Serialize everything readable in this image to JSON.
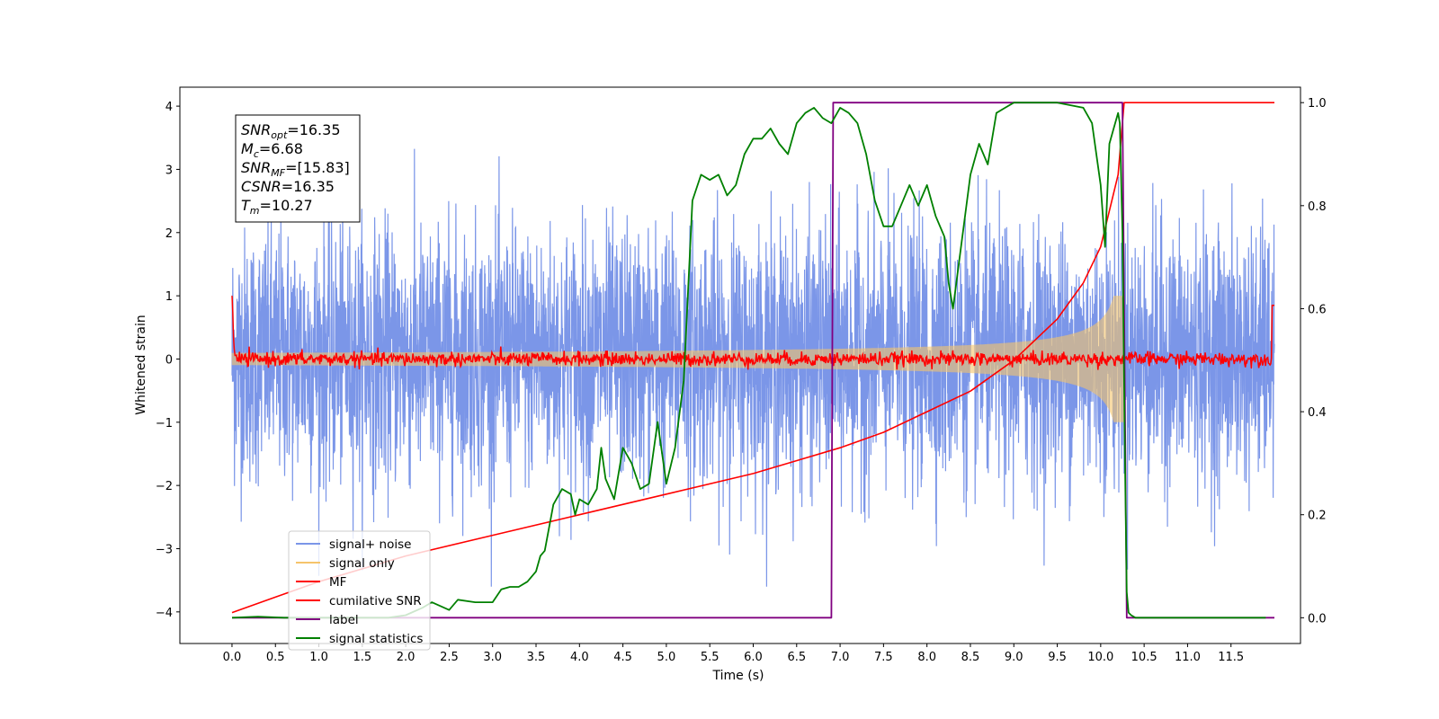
{
  "chart_data": {
    "type": "line",
    "xlabel": "Time (s)",
    "ylabel": "Whitened strain",
    "xlim": [
      -0.6,
      12.3
    ],
    "ylim_left": [
      -4.5,
      4.3
    ],
    "ylim_right": [
      -0.05,
      1.03
    ],
    "x_ticks": [
      "0.0",
      "0.5",
      "1.0",
      "1.5",
      "2.0",
      "2.5",
      "3.0",
      "3.5",
      "4.0",
      "4.5",
      "5.0",
      "5.5",
      "6.0",
      "6.5",
      "7.0",
      "7.5",
      "8.0",
      "8.5",
      "9.0",
      "9.5",
      "10.0",
      "10.5",
      "11.0",
      "11.5"
    ],
    "y_ticks_left": [
      "4",
      "3",
      "2",
      "1",
      "0",
      "−1",
      "−2",
      "−3",
      "−4"
    ],
    "y_ticks_right": [
      "1.0",
      "0.8",
      "0.6",
      "0.4",
      "0.2",
      "0.0"
    ],
    "annotation": {
      "lines": [
        {
          "sym": "SNR",
          "sub": "opt",
          "val": "=16.35"
        },
        {
          "sym": "M",
          "sub": "c",
          "val": "=6.68"
        },
        {
          "sym": "SNR",
          "sub": "MF",
          "val": "=[15.83]"
        },
        {
          "sym": "CSNR",
          "sub": "",
          "val": "=16.35"
        },
        {
          "sym": "T",
          "sub": "m",
          "val": "=10.27"
        }
      ]
    },
    "legend": {
      "placement": "lower-left",
      "entries": [
        {
          "label": "signal+ noise",
          "color": "#7b96e8"
        },
        {
          "label": "signal only",
          "color": "#f5c46b"
        },
        {
          "label": "MF",
          "color": "#ff0000"
        },
        {
          "label": "cumilative SNR",
          "color": "#ff0000"
        },
        {
          "label": "label",
          "color": "#800080"
        },
        {
          "label": "signal statistics",
          "color": "#008000"
        }
      ]
    },
    "series": [
      {
        "name": "signal+ noise",
        "axis": "left",
        "color": "#7b96e8",
        "x_range": [
          0.0,
          12.0
        ],
        "envelope_typical": [
          -2.3,
          2.5
        ],
        "peak_max": 3.9,
        "peak_min": -3.6
      },
      {
        "name": "signal only",
        "axis": "left",
        "color": "#f5c46b",
        "x_range": [
          0.0,
          10.27
        ],
        "amplitude_start": 0.05,
        "amplitude_end": 1.0
      },
      {
        "name": "MF",
        "axis": "left",
        "color": "#ff0000",
        "x_range": [
          0.0,
          12.0
        ],
        "level": 0.0,
        "start_value": 1.0,
        "end_value": 0.85
      },
      {
        "name": "cumilative SNR",
        "axis": "right",
        "color": "#ff0000",
        "x": [
          0.0,
          0.5,
          1.0,
          2.0,
          3.0,
          4.0,
          5.0,
          6.0,
          7.0,
          7.5,
          8.0,
          8.5,
          9.0,
          9.5,
          9.8,
          10.0,
          10.2,
          10.27,
          10.5,
          12.0
        ],
        "y": [
          0.01,
          0.04,
          0.07,
          0.12,
          0.16,
          0.2,
          0.24,
          0.28,
          0.33,
          0.36,
          0.4,
          0.44,
          0.5,
          0.58,
          0.65,
          0.72,
          0.86,
          1.0,
          1.0,
          1.0
        ]
      },
      {
        "name": "label",
        "axis": "right",
        "color": "#800080",
        "x": [
          0.0,
          6.9,
          6.92,
          10.25,
          10.3,
          12.0
        ],
        "y": [
          0.0,
          0.0,
          1.0,
          1.0,
          0.0,
          0.0
        ]
      },
      {
        "name": "signal statistics",
        "axis": "right",
        "color": "#008000",
        "x": [
          0.0,
          0.3,
          0.6,
          1.0,
          1.5,
          1.8,
          2.0,
          2.2,
          2.3,
          2.5,
          2.6,
          2.8,
          3.0,
          3.1,
          3.2,
          3.3,
          3.4,
          3.5,
          3.55,
          3.6,
          3.7,
          3.8,
          3.9,
          3.95,
          4.0,
          4.1,
          4.2,
          4.25,
          4.3,
          4.4,
          4.5,
          4.6,
          4.7,
          4.8,
          4.9,
          5.0,
          5.1,
          5.2,
          5.3,
          5.4,
          5.5,
          5.6,
          5.7,
          5.8,
          5.9,
          6.0,
          6.1,
          6.2,
          6.3,
          6.4,
          6.5,
          6.6,
          6.7,
          6.8,
          6.9,
          7.0,
          7.1,
          7.2,
          7.3,
          7.4,
          7.5,
          7.6,
          7.7,
          7.8,
          7.9,
          8.0,
          8.1,
          8.2,
          8.25,
          8.3,
          8.4,
          8.5,
          8.6,
          8.7,
          8.8,
          8.9,
          9.0,
          9.5,
          9.8,
          9.9,
          10.0,
          10.05,
          10.1,
          10.15,
          10.2,
          10.22,
          10.25,
          10.28,
          10.3,
          10.32,
          10.35,
          10.4,
          10.5,
          11.0,
          11.5,
          11.9
        ],
        "y": [
          0.0,
          0.002,
          0.0,
          0.0,
          0.0,
          0.0,
          0.005,
          0.02,
          0.03,
          0.015,
          0.035,
          0.03,
          0.03,
          0.055,
          0.06,
          0.06,
          0.07,
          0.09,
          0.12,
          0.13,
          0.22,
          0.25,
          0.24,
          0.2,
          0.23,
          0.22,
          0.25,
          0.33,
          0.27,
          0.23,
          0.33,
          0.3,
          0.25,
          0.26,
          0.38,
          0.26,
          0.33,
          0.46,
          0.81,
          0.86,
          0.85,
          0.86,
          0.82,
          0.84,
          0.9,
          0.93,
          0.93,
          0.95,
          0.92,
          0.9,
          0.96,
          0.98,
          0.99,
          0.97,
          0.96,
          0.99,
          0.98,
          0.96,
          0.9,
          0.81,
          0.76,
          0.76,
          0.8,
          0.84,
          0.8,
          0.84,
          0.78,
          0.74,
          0.65,
          0.6,
          0.73,
          0.86,
          0.92,
          0.88,
          0.98,
          0.99,
          1.0,
          1.0,
          0.99,
          0.96,
          0.84,
          0.72,
          0.92,
          0.95,
          0.98,
          0.96,
          0.75,
          0.3,
          0.05,
          0.01,
          0.005,
          0.0,
          0.0,
          0.0,
          0.0,
          0.0
        ]
      }
    ]
  }
}
